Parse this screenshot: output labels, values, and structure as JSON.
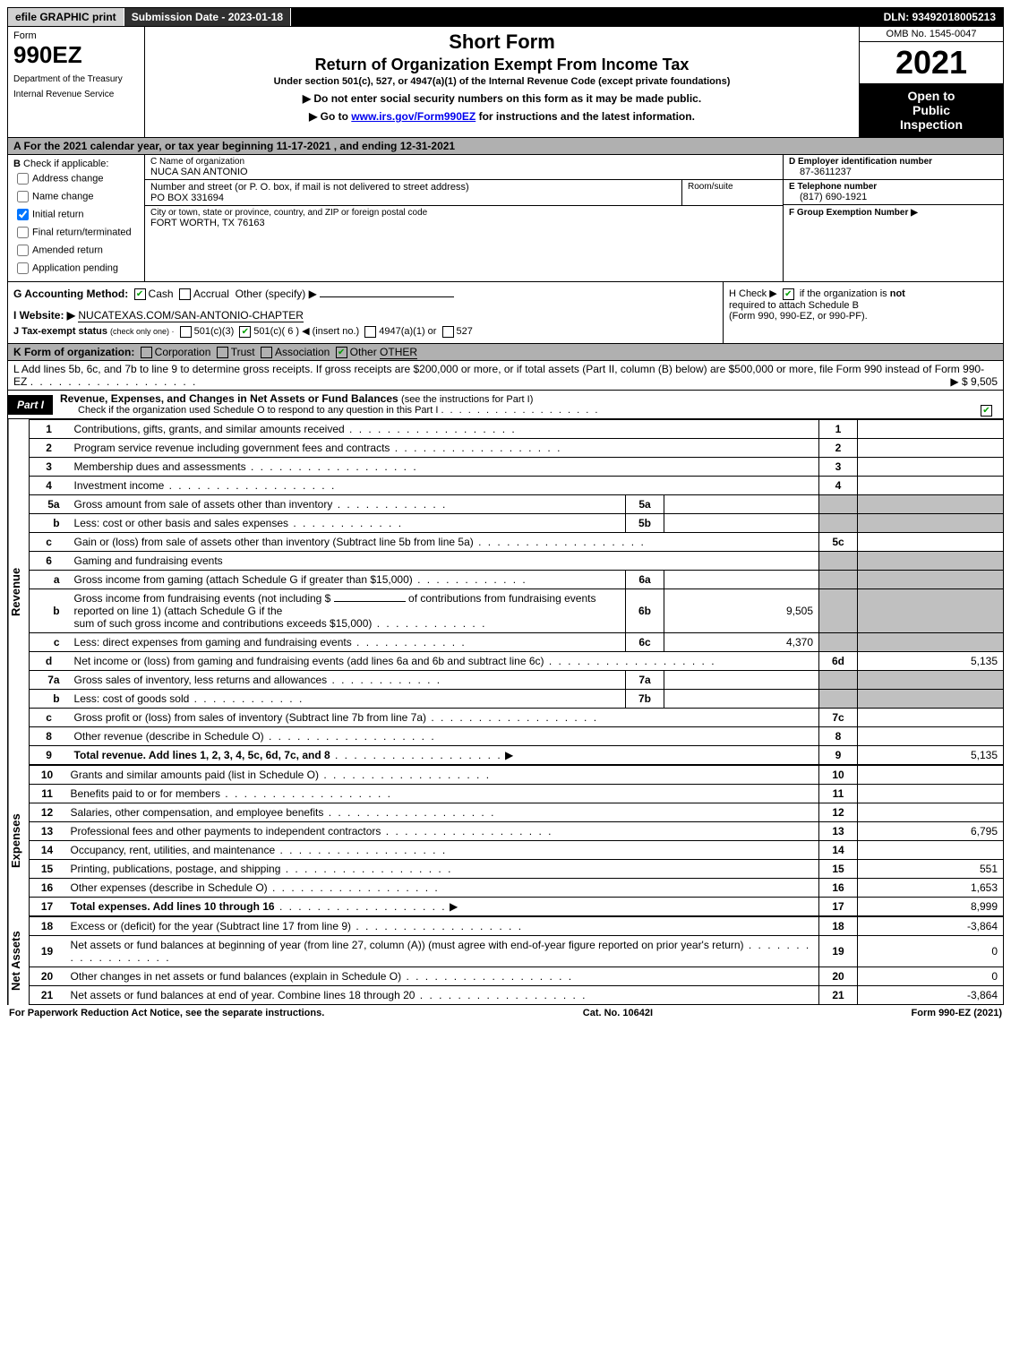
{
  "topbar": {
    "efile": "efile GRAPHIC print",
    "submission": "Submission Date - 2023-01-18",
    "dln": "DLN: 93492018005213"
  },
  "header": {
    "form_word": "Form",
    "form_number": "990EZ",
    "dept1": "Department of the Treasury",
    "dept2": "Internal Revenue Service",
    "title1": "Short Form",
    "title2": "Return of Organization Exempt From Income Tax",
    "subtitle": "Under section 501(c), 527, or 4947(a)(1) of the Internal Revenue Code (except private foundations)",
    "directive1": "▶ Do not enter social security numbers on this form as it may be made public.",
    "directive2_pre": "▶ Go to ",
    "directive2_link": "www.irs.gov/Form990EZ",
    "directive2_post": " for instructions and the latest information.",
    "omb": "OMB No. 1545-0047",
    "year": "2021",
    "inspection1": "Open to",
    "inspection2": "Public",
    "inspection3": "Inspection"
  },
  "lineA": "A  For the 2021 calendar year, or tax year beginning 11-17-2021 , and ending 12-31-2021",
  "sectionB": {
    "header": "B",
    "check_label": "Check if applicable:",
    "opts": [
      {
        "label": "Address change",
        "checked": false
      },
      {
        "label": "Name change",
        "checked": false
      },
      {
        "label": "Initial return",
        "checked": true
      },
      {
        "label": "Final return/terminated",
        "checked": false
      },
      {
        "label": "Amended return",
        "checked": false
      },
      {
        "label": "Application pending",
        "checked": false
      }
    ]
  },
  "sectionC": {
    "name_lbl": "C Name of organization",
    "name_val": "NUCA SAN ANTONIO",
    "street_lbl": "Number and street (or P. O. box, if mail is not delivered to street address)",
    "street_val": "PO BOX 331694",
    "room_lbl": "Room/suite",
    "city_lbl": "City or town, state or province, country, and ZIP or foreign postal code",
    "city_val": "FORT WORTH, TX  76163"
  },
  "sectionDEF": {
    "d_lbl": "D Employer identification number",
    "d_val": "87-3611237",
    "e_lbl": "E Telephone number",
    "e_val": "(817) 690-1921",
    "f_lbl": "F Group Exemption Number  ▶",
    "f_val": ""
  },
  "lineG": {
    "label": "G Accounting Method:",
    "cash": "Cash",
    "accrual": "Accrual",
    "other": "Other (specify) ▶"
  },
  "lineH": {
    "pre": "H  Check ▶ ",
    "post": " if the organization is ",
    "not": "not",
    "line2": "required to attach Schedule B",
    "line3": "(Form 990, 990-EZ, or 990-PF)."
  },
  "lineI": {
    "label": "I Website: ▶",
    "value": "NUCATEXAS.COM/SAN-ANTONIO-CHAPTER"
  },
  "lineJ": {
    "label": "J Tax-exempt status",
    "sub": "(check only one) ·",
    "o1": "501(c)(3)",
    "o2": "501(c)( 6 ) ◀ (insert no.)",
    "o3": "4947(a)(1) or",
    "o4": "527"
  },
  "lineK": {
    "label": "K Form of organization:",
    "o1": "Corporation",
    "o2": "Trust",
    "o3": "Association",
    "o4": "Other",
    "other_val": "OTHER"
  },
  "lineL": {
    "text": "L Add lines 5b, 6c, and 7b to line 9 to determine gross receipts. If gross receipts are $200,000 or more, or if total assets (Part II, column (B) below) are $500,000 or more, file Form 990 instead of Form 990-EZ",
    "val": "▶ $ 9,505"
  },
  "part1": {
    "label": "Part I",
    "title": "Revenue, Expenses, and Changes in Net Assets or Fund Balances",
    "title_sub": "(see the instructions for Part I)",
    "check_line": "Check if the organization used Schedule O to respond to any question in this Part I"
  },
  "vert": {
    "revenue": "Revenue",
    "expenses": "Expenses",
    "netassets": "Net Assets"
  },
  "revenue_rows": [
    {
      "n": "1",
      "desc": "Contributions, gifts, grants, and similar amounts received",
      "rn": "1",
      "rv": ""
    },
    {
      "n": "2",
      "desc": "Program service revenue including government fees and contracts",
      "rn": "2",
      "rv": ""
    },
    {
      "n": "3",
      "desc": "Membership dues and assessments",
      "rn": "3",
      "rv": ""
    },
    {
      "n": "4",
      "desc": "Investment income",
      "rn": "4",
      "rv": ""
    }
  ],
  "line5a": {
    "n": "5a",
    "desc": "Gross amount from sale of assets other than inventory",
    "mn": "5a",
    "mv": ""
  },
  "line5b": {
    "n": "b",
    "desc": "Less: cost or other basis and sales expenses",
    "mn": "5b",
    "mv": ""
  },
  "line5c": {
    "n": "c",
    "desc": "Gain or (loss) from sale of assets other than inventory (Subtract line 5b from line 5a)",
    "rn": "5c",
    "rv": ""
  },
  "line6": {
    "n": "6",
    "desc": "Gaming and fundraising events"
  },
  "line6a": {
    "n": "a",
    "desc": "Gross income from gaming (attach Schedule G if greater than $15,000)",
    "mn": "6a",
    "mv": ""
  },
  "line6b": {
    "n": "b",
    "desc1": "Gross income from fundraising events (not including $",
    "desc2": "of contributions from fundraising events reported on line 1) (attach Schedule G if the",
    "desc3": "sum of such gross income and contributions exceeds $15,000)",
    "mn": "6b",
    "mv": "9,505"
  },
  "line6c": {
    "n": "c",
    "desc": "Less: direct expenses from gaming and fundraising events",
    "mn": "6c",
    "mv": "4,370"
  },
  "line6d": {
    "n": "d",
    "desc": "Net income or (loss) from gaming and fundraising events (add lines 6a and 6b and subtract line 6c)",
    "rn": "6d",
    "rv": "5,135"
  },
  "line7a": {
    "n": "7a",
    "desc": "Gross sales of inventory, less returns and allowances",
    "mn": "7a",
    "mv": ""
  },
  "line7b": {
    "n": "b",
    "desc": "Less: cost of goods sold",
    "mn": "7b",
    "mv": ""
  },
  "line7c": {
    "n": "c",
    "desc": "Gross profit or (loss) from sales of inventory (Subtract line 7b from line 7a)",
    "rn": "7c",
    "rv": ""
  },
  "line8": {
    "n": "8",
    "desc": "Other revenue (describe in Schedule O)",
    "rn": "8",
    "rv": ""
  },
  "line9": {
    "n": "9",
    "desc": "Total revenue. Add lines 1, 2, 3, 4, 5c, 6d, 7c, and 8",
    "rn": "9",
    "rv": "5,135"
  },
  "expense_rows": [
    {
      "n": "10",
      "desc": "Grants and similar amounts paid (list in Schedule O)",
      "rn": "10",
      "rv": ""
    },
    {
      "n": "11",
      "desc": "Benefits paid to or for members",
      "rn": "11",
      "rv": ""
    },
    {
      "n": "12",
      "desc": "Salaries, other compensation, and employee benefits",
      "rn": "12",
      "rv": ""
    },
    {
      "n": "13",
      "desc": "Professional fees and other payments to independent contractors",
      "rn": "13",
      "rv": "6,795"
    },
    {
      "n": "14",
      "desc": "Occupancy, rent, utilities, and maintenance",
      "rn": "14",
      "rv": ""
    },
    {
      "n": "15",
      "desc": "Printing, publications, postage, and shipping",
      "rn": "15",
      "rv": "551"
    },
    {
      "n": "16",
      "desc": "Other expenses (describe in Schedule O)",
      "rn": "16",
      "rv": "1,653"
    },
    {
      "n": "17",
      "desc": "Total expenses. Add lines 10 through 16",
      "rn": "17",
      "rv": "8,999",
      "bold": true
    }
  ],
  "netasset_rows": [
    {
      "n": "18",
      "desc": "Excess or (deficit) for the year (Subtract line 17 from line 9)",
      "rn": "18",
      "rv": "-3,864"
    },
    {
      "n": "19",
      "desc": "Net assets or fund balances at beginning of year (from line 27, column (A)) (must agree with end-of-year figure reported on prior year's return)",
      "rn": "19",
      "rv": "0"
    },
    {
      "n": "20",
      "desc": "Other changes in net assets or fund balances (explain in Schedule O)",
      "rn": "20",
      "rv": "0"
    },
    {
      "n": "21",
      "desc": "Net assets or fund balances at end of year. Combine lines 18 through 20",
      "rn": "21",
      "rv": "-3,864"
    }
  ],
  "footer": {
    "left": "For Paperwork Reduction Act Notice, see the separate instructions.",
    "mid": "Cat. No. 10642I",
    "right_pre": "Form ",
    "right_bold": "990-EZ",
    "right_post": " (2021)"
  }
}
